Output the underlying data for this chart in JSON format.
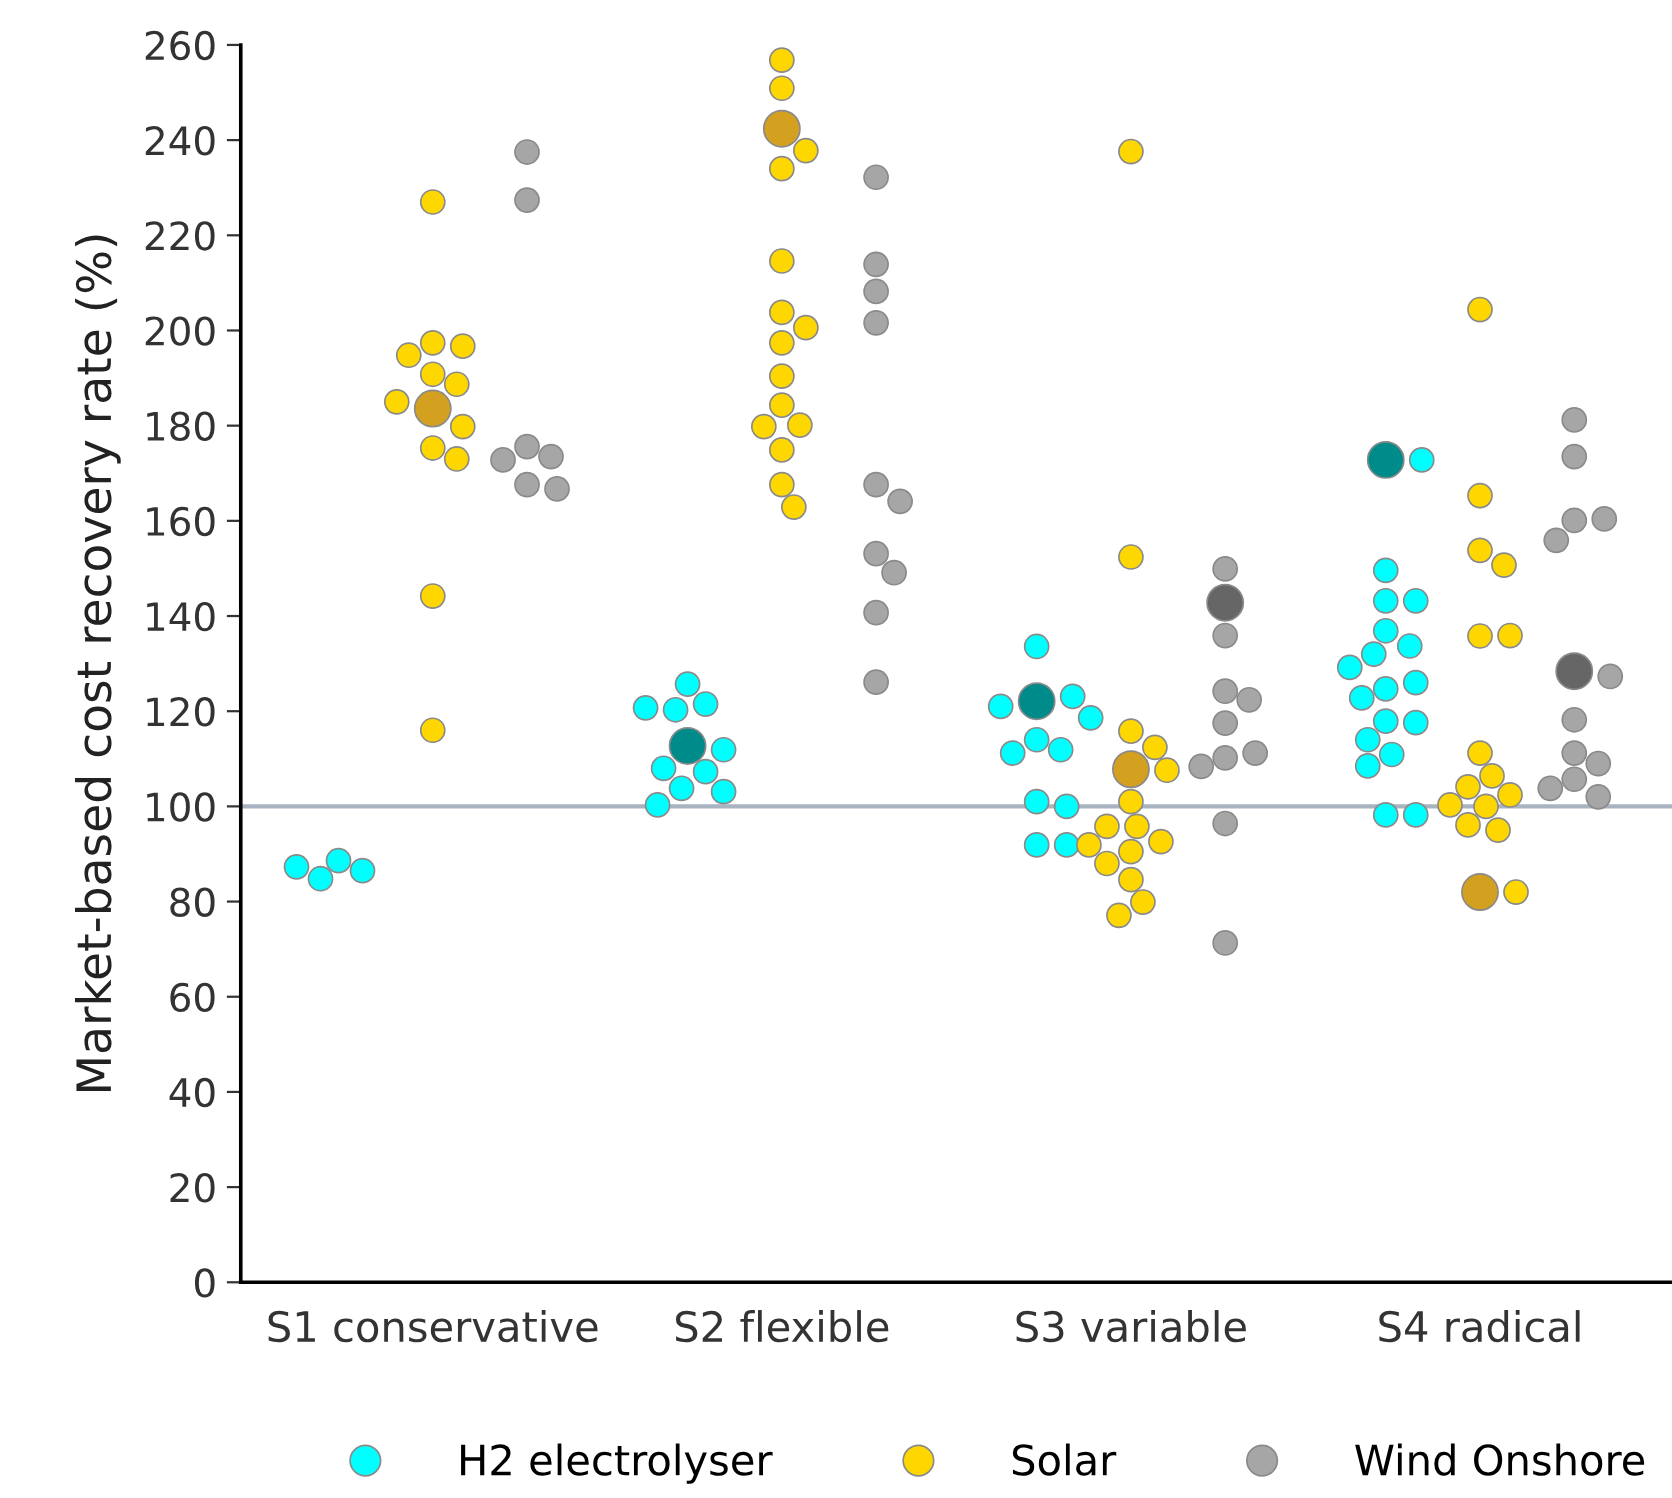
{
  "chart_data": {
    "type": "scatter",
    "ylabel": "Market-based cost recovery rate (%)",
    "categories": [
      "S1 conservative",
      "S2 flexible",
      "S3 variable",
      "S4 radical"
    ],
    "ylim": [
      0,
      260
    ],
    "yticks": [
      0,
      20,
      40,
      60,
      80,
      100,
      120,
      140,
      160,
      180,
      200,
      220,
      240,
      260
    ],
    "legend": "bottom",
    "marker": "circle",
    "ref_lines": [
      {
        "axis": "y",
        "value": 100,
        "color": "#a9b4c2"
      }
    ],
    "series": [
      {
        "name": "H2 electrolyser",
        "color": "#00ffff",
        "x": [
          "S1 conservative",
          "S1 conservative",
          "S1 conservative",
          "S1 conservative",
          "S2 flexible",
          "S2 flexible",
          "S2 flexible",
          "S2 flexible",
          "S2 flexible",
          "S2 flexible",
          "S2 flexible",
          "S2 flexible",
          "S2 flexible",
          "S2 flexible",
          "S3 variable",
          "S3 variable",
          "S3 variable",
          "S3 variable",
          "S3 variable",
          "S3 variable",
          "S3 variable",
          "S3 variable",
          "S3 variable",
          "S3 variable",
          "S3 variable",
          "S4 radical",
          "S4 radical",
          "S4 radical",
          "S4 radical",
          "S4 radical",
          "S4 radical",
          "S4 radical",
          "S4 radical",
          "S4 radical",
          "S4 radical",
          "S4 radical",
          "S4 radical",
          "S4 radical",
          "S4 radical",
          "S4 radical",
          "S4 radical",
          "S4 radical",
          "S4 radical"
        ],
        "values": [
          88.6,
          86.5,
          84.8,
          87.3,
          125.7,
          121.5,
          120.3,
          120.7,
          111.9,
          107.3,
          108,
          103.8,
          103.1,
          100.3,
          133.6,
          123.1,
          121,
          118.6,
          114,
          111.9,
          111.2,
          101,
          100,
          91.9,
          91.9,
          172.8,
          149.6,
          143.2,
          143.2,
          136.9,
          133.7,
          132,
          129.2,
          124.7,
          126,
          122.8,
          117.9,
          117.6,
          114,
          110.9,
          108.5,
          98.2,
          98.2
        ]
      },
      {
        "name": "Solar",
        "color": "#ffd700",
        "x": [
          "S1 conservative",
          "S1 conservative",
          "S1 conservative",
          "S1 conservative",
          "S1 conservative",
          "S1 conservative",
          "S1 conservative",
          "S1 conservative",
          "S1 conservative",
          "S1 conservative",
          "S1 conservative",
          "S1 conservative",
          "S2 flexible",
          "S2 flexible",
          "S2 flexible",
          "S2 flexible",
          "S2 flexible",
          "S2 flexible",
          "S2 flexible",
          "S2 flexible",
          "S2 flexible",
          "S2 flexible",
          "S2 flexible",
          "S2 flexible",
          "S2 flexible",
          "S2 flexible",
          "S2 flexible",
          "S3 variable",
          "S3 variable",
          "S3 variable",
          "S3 variable",
          "S3 variable",
          "S3 variable",
          "S3 variable",
          "S3 variable",
          "S3 variable",
          "S3 variable",
          "S3 variable",
          "S3 variable",
          "S3 variable",
          "S3 variable",
          "S3 variable",
          "S4 radical",
          "S4 radical",
          "S4 radical",
          "S4 radical",
          "S4 radical",
          "S4 radical",
          "S4 radical",
          "S4 radical",
          "S4 radical",
          "S4 radical",
          "S4 radical",
          "S4 radical",
          "S4 radical",
          "S4 radical",
          "S4 radical"
        ],
        "values": [
          227,
          197.4,
          196.7,
          194.8,
          190.8,
          188.7,
          185,
          179.8,
          175.3,
          173,
          144.2,
          116,
          256.8,
          250.9,
          237.8,
          234,
          214.6,
          203.8,
          200.6,
          197.4,
          190.4,
          184.3,
          180.1,
          179.8,
          174.9,
          167.6,
          162.9,
          237.6,
          152.4,
          115.8,
          112.4,
          107.6,
          101,
          95.8,
          95.8,
          92.6,
          91.9,
          90.5,
          88,
          84.6,
          79.9,
          77.1,
          204.4,
          165.3,
          153.8,
          150.7,
          135.8,
          135.9,
          111.2,
          106.4,
          104.1,
          102.4,
          100,
          100.3,
          96.1,
          95,
          82
        ]
      },
      {
        "name": "Wind Onshore",
        "color": "#a6a6a6",
        "x": [
          "S1 conservative",
          "S1 conservative",
          "S1 conservative",
          "S1 conservative",
          "S1 conservative",
          "S1 conservative",
          "S1 conservative",
          "S2 flexible",
          "S2 flexible",
          "S2 flexible",
          "S2 flexible",
          "S2 flexible",
          "S2 flexible",
          "S2 flexible",
          "S2 flexible",
          "S2 flexible",
          "S2 flexible",
          "S3 variable",
          "S3 variable",
          "S3 variable",
          "S3 variable",
          "S3 variable",
          "S3 variable",
          "S3 variable",
          "S3 variable",
          "S3 variable",
          "S3 variable",
          "S4 radical",
          "S4 radical",
          "S4 radical",
          "S4 radical",
          "S4 radical",
          "S4 radical",
          "S4 radical",
          "S4 radical",
          "S4 radical",
          "S4 radical",
          "S4 radical",
          "S4 radical"
        ],
        "values": [
          237.5,
          227.4,
          175.6,
          173.5,
          172.8,
          167.6,
          166.7,
          232.2,
          213.9,
          208.2,
          201.6,
          167.6,
          164.1,
          153.1,
          149.1,
          140.7,
          126.1,
          149.9,
          135.9,
          124.2,
          122.4,
          117.5,
          110.2,
          111.2,
          108.4,
          96.4,
          71.3,
          181.2,
          173.5,
          160.1,
          160.4,
          155.9,
          127.3,
          118.2,
          111.2,
          109,
          105.7,
          103.8,
          102
        ]
      },
      {
        "color": "#008b8b",
        "x": [
          "S2 flexible",
          "S3 variable",
          "S4 radical"
        ],
        "values": [
          112.7,
          122.1,
          172.8
        ]
      },
      {
        "color": "#d4a020",
        "x": [
          "S1 conservative",
          "S2 flexible",
          "S3 variable",
          "S4 radical"
        ],
        "values": [
          183.6,
          242.4,
          107.8,
          82
        ]
      },
      {
        "color": "#666666",
        "x": [
          "S3 variable",
          "S4 radical"
        ],
        "values": [
          142.8,
          128.4
        ]
      }
    ]
  }
}
